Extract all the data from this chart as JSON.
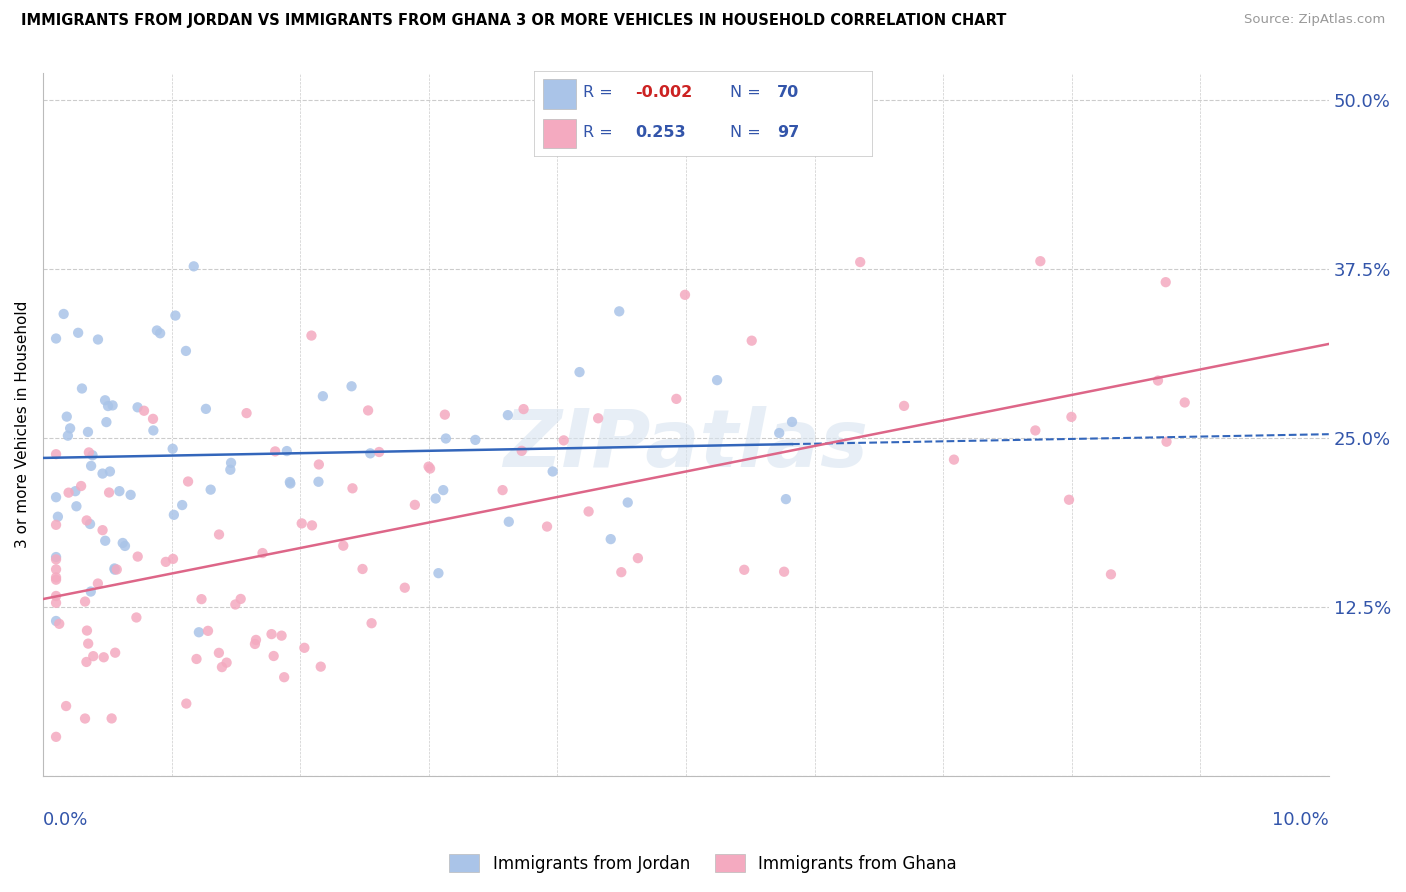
{
  "title": "IMMIGRANTS FROM JORDAN VS IMMIGRANTS FROM GHANA 3 OR MORE VEHICLES IN HOUSEHOLD CORRELATION CHART",
  "source": "Source: ZipAtlas.com",
  "ylabel_label": "3 or more Vehicles in Household",
  "yticks": [
    0.0,
    0.125,
    0.25,
    0.375,
    0.5
  ],
  "ytick_labels": [
    "",
    "12.5%",
    "25.0%",
    "37.5%",
    "50.0%"
  ],
  "xlim": [
    0.0,
    0.1
  ],
  "ylim": [
    0.0,
    0.52
  ],
  "legend_jordan": "Immigrants from Jordan",
  "legend_ghana": "Immigrants from Ghana",
  "R_jordan": "-0.002",
  "N_jordan": "70",
  "R_ghana": "0.253",
  "N_ghana": "97",
  "jordan_color": "#aac4e8",
  "ghana_color": "#f4aac0",
  "jordan_line_color": "#3366bb",
  "ghana_line_color": "#dd6688",
  "legend_text_color": "#3355aa",
  "neg_r_color": "#cc2222",
  "background_color": "#ffffff",
  "watermark": "ZIPatlas"
}
